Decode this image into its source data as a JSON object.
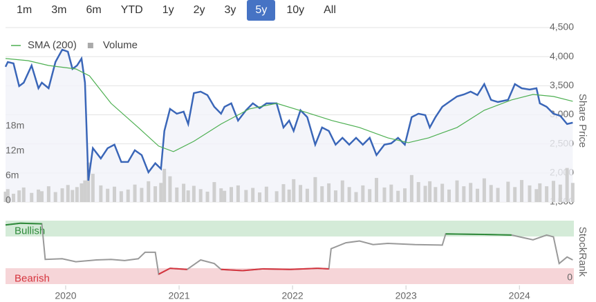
{
  "range_buttons": {
    "options": [
      "1m",
      "3m",
      "6m",
      "YTD",
      "1y",
      "2y",
      "3y",
      "5y",
      "10y",
      "All"
    ],
    "selected": "5y"
  },
  "chart_data": [
    {
      "type": "line",
      "y_axis_title": "Share Price",
      "legend": "top-left",
      "grid": true,
      "xlim": [
        2019.47,
        2024.48
      ],
      "ylim": [
        1500,
        4500
      ],
      "yticks": [
        {
          "value": 1500,
          "label": "1,500"
        },
        {
          "value": 2000,
          "label": "2,000"
        },
        {
          "value": 2500,
          "label": "2,500"
        },
        {
          "value": 3000,
          "label": "3,000"
        },
        {
          "value": 3500,
          "label": "3,500"
        },
        {
          "value": 4000,
          "label": "4,000"
        },
        {
          "value": 4500,
          "label": "4,500"
        }
      ],
      "y2lim": [
        0,
        42000000
      ],
      "y2ticks": [
        0,
        {
          "value": 6000000,
          "label": "6m"
        },
        {
          "value": 12000000,
          "label": "12m"
        },
        {
          "value": 18000000,
          "label": "18m"
        }
      ],
      "series": [
        {
          "color": "#3a66b8",
          "area_color": "#f1f3f9",
          "x": [
            2019.47,
            2019.49,
            2019.54,
            2019.59,
            2019.63,
            2019.7,
            2019.76,
            2019.79,
            2019.85,
            2019.91,
            2019.97,
            2020.02,
            2020.06,
            2020.1,
            2020.14,
            2020.17,
            2020.2,
            2020.24,
            2020.31,
            2020.37,
            2020.43,
            2020.49,
            2020.55,
            2020.61,
            2020.67,
            2020.73,
            2020.79,
            2020.84,
            2020.87,
            2020.92,
            2020.98,
            2021.04,
            2021.08,
            2021.13,
            2021.19,
            2021.25,
            2021.31,
            2021.37,
            2021.4,
            2021.46,
            2021.52,
            2021.59,
            2021.65,
            2021.71,
            2021.77,
            2021.86,
            2021.92,
            2021.97,
            2022.01,
            2022.07,
            2022.13,
            2022.2,
            2022.26,
            2022.32,
            2022.38,
            2022.44,
            2022.5,
            2022.56,
            2022.62,
            2022.68,
            2022.74,
            2022.81,
            2022.87,
            2022.93,
            2022.99,
            2023.05,
            2023.11,
            2023.17,
            2023.21,
            2023.26,
            2023.32,
            2023.38,
            2023.45,
            2023.51,
            2023.57,
            2023.63,
            2023.69,
            2023.75,
            2023.81,
            2023.9,
            2023.96,
            2024.02,
            2024.09,
            2024.15,
            2024.18,
            2024.24,
            2024.3,
            2024.36,
            2024.42,
            2024.47
          ],
          "values": [
            3825,
            3908,
            3884,
            3493,
            3552,
            3848,
            3457,
            3552,
            3457,
            3908,
            4121,
            4085,
            3789,
            3848,
            3967,
            3552,
            1869,
            2426,
            2249,
            2426,
            2486,
            2189,
            2189,
            2391,
            2308,
            2012,
            2166,
            2071,
            2723,
            3102,
            3019,
            3054,
            2841,
            3374,
            3398,
            3339,
            3137,
            3019,
            3137,
            3197,
            2900,
            3078,
            3197,
            3114,
            3197,
            3197,
            2782,
            2900,
            2723,
            3078,
            2960,
            2486,
            2782,
            2723,
            2486,
            2604,
            2486,
            2604,
            2486,
            2604,
            2308,
            2486,
            2509,
            2604,
            2486,
            2960,
            3019,
            2995,
            2782,
            2960,
            3137,
            3220,
            3315,
            3350,
            3398,
            3339,
            3528,
            3256,
            3220,
            3256,
            3528,
            3457,
            3434,
            3457,
            3197,
            3137,
            3019,
            2983,
            2841,
            2865
          ]
        },
        {
          "name": "SMA (200)",
          "color": "#4caf50",
          "x": [
            2019.47,
            2019.67,
            2019.85,
            2020.09,
            2020.21,
            2020.4,
            2020.64,
            2020.82,
            2020.95,
            2021.13,
            2021.37,
            2021.62,
            2021.86,
            2022.1,
            2022.35,
            2022.59,
            2022.84,
            2023.02,
            2023.2,
            2023.45,
            2023.69,
            2023.93,
            2024.12,
            2024.3,
            2024.47
          ],
          "values": [
            3967,
            3931,
            3848,
            3789,
            3670,
            3197,
            2782,
            2462,
            2367,
            2545,
            2841,
            3102,
            3197,
            3054,
            2900,
            2782,
            2604,
            2521,
            2604,
            2782,
            3078,
            3256,
            3350,
            3315,
            3232
          ]
        },
        {
          "name": "Volume",
          "type": "bar",
          "axis": "y2",
          "color": "#cfcfcf",
          "x": [
            2019.47,
            2019.49,
            2019.54,
            2019.59,
            2019.63,
            2019.7,
            2019.76,
            2019.79,
            2019.85,
            2019.91,
            2019.97,
            2020.02,
            2020.06,
            2020.1,
            2020.14,
            2020.17,
            2020.2,
            2020.24,
            2020.31,
            2020.37,
            2020.43,
            2020.49,
            2020.55,
            2020.61,
            2020.67,
            2020.73,
            2020.79,
            2020.84,
            2020.87,
            2020.92,
            2020.98,
            2021.04,
            2021.08,
            2021.13,
            2021.19,
            2021.25,
            2021.31,
            2021.37,
            2021.4,
            2021.46,
            2021.52,
            2021.59,
            2021.65,
            2021.71,
            2021.77,
            2021.86,
            2021.92,
            2021.97,
            2022.01,
            2022.07,
            2022.13,
            2022.2,
            2022.26,
            2022.32,
            2022.38,
            2022.44,
            2022.5,
            2022.56,
            2022.62,
            2022.68,
            2022.74,
            2022.81,
            2022.87,
            2022.93,
            2022.99,
            2023.05,
            2023.11,
            2023.17,
            2023.21,
            2023.26,
            2023.32,
            2023.38,
            2023.45,
            2023.51,
            2023.57,
            2023.63,
            2023.69,
            2023.75,
            2023.81,
            2023.9,
            2023.96,
            2024.02,
            2024.09,
            2024.15,
            2024.18,
            2024.24,
            2024.3,
            2024.36,
            2024.42,
            2024.47
          ],
          "values": [
            2500000,
            3100000,
            2000000,
            2800000,
            3500000,
            2200000,
            3000000,
            2600000,
            3800000,
            2400000,
            3300000,
            4100000,
            2900000,
            3600000,
            4500000,
            5200000,
            9500000,
            6800000,
            4000000,
            3200000,
            3700000,
            2600000,
            3000000,
            4200000,
            3400000,
            5000000,
            3800000,
            4600000,
            8000000,
            6200000,
            3500000,
            4400000,
            2800000,
            3900000,
            3100000,
            2500000,
            4800000,
            3300000,
            2700000,
            3600000,
            4000000,
            2900000,
            3400000,
            2300000,
            3700000,
            2600000,
            4300000,
            3000000,
            5500000,
            4100000,
            3200000,
            6000000,
            3800000,
            4500000,
            2800000,
            5200000,
            3600000,
            2400000,
            4000000,
            3100000,
            5800000,
            3500000,
            4200000,
            2700000,
            3300000,
            6500000,
            4800000,
            3900000,
            5000000,
            3600000,
            4400000,
            3000000,
            5200000,
            3800000,
            4600000,
            3200000,
            5700000,
            4100000,
            3400000,
            4900000,
            3600000,
            5300000,
            4000000,
            3100000,
            4500000,
            3800000,
            5100000,
            4200000,
            8200000,
            4600000
          ]
        }
      ]
    },
    {
      "type": "line",
      "y_axis_title": "StockRank",
      "color": "#999999",
      "xlim": [
        2019.47,
        2024.48
      ],
      "xticks": [
        2020,
        2021,
        2022,
        2023,
        2024
      ],
      "ylim": [
        0,
        100
      ],
      "yticks": [
        0
      ],
      "bands": [
        {
          "label": "Bullish",
          "color": "#d4ebd8",
          "line_color": "#2e8b3a"
        },
        {
          "label": "Bearish",
          "color": "#f6d5d8",
          "line_color": "#d6343e"
        }
      ],
      "x": [
        2019.47,
        2019.6,
        2019.79,
        2019.82,
        2019.97,
        2020.09,
        2020.27,
        2020.4,
        2020.52,
        2020.64,
        2020.7,
        2020.79,
        2020.82,
        2020.92,
        2021.07,
        2021.19,
        2021.31,
        2021.37,
        2021.56,
        2021.74,
        2021.98,
        2022.22,
        2022.32,
        2022.34,
        2022.47,
        2022.59,
        2022.71,
        2022.84,
        2023.08,
        2023.32,
        2023.35,
        2023.69,
        2023.93,
        2024.12,
        2024.24,
        2024.3,
        2024.35,
        2024.42,
        2024.47
      ],
      "values": [
        95,
        98,
        97,
        37,
        38,
        33,
        36,
        37,
        35,
        38,
        49,
        49,
        12,
        22,
        20,
        36,
        30,
        20,
        18,
        21,
        20,
        22,
        21,
        55,
        65,
        68,
        62,
        64,
        62,
        61,
        80,
        79,
        78,
        70,
        78,
        75,
        30,
        41,
        36
      ]
    }
  ]
}
